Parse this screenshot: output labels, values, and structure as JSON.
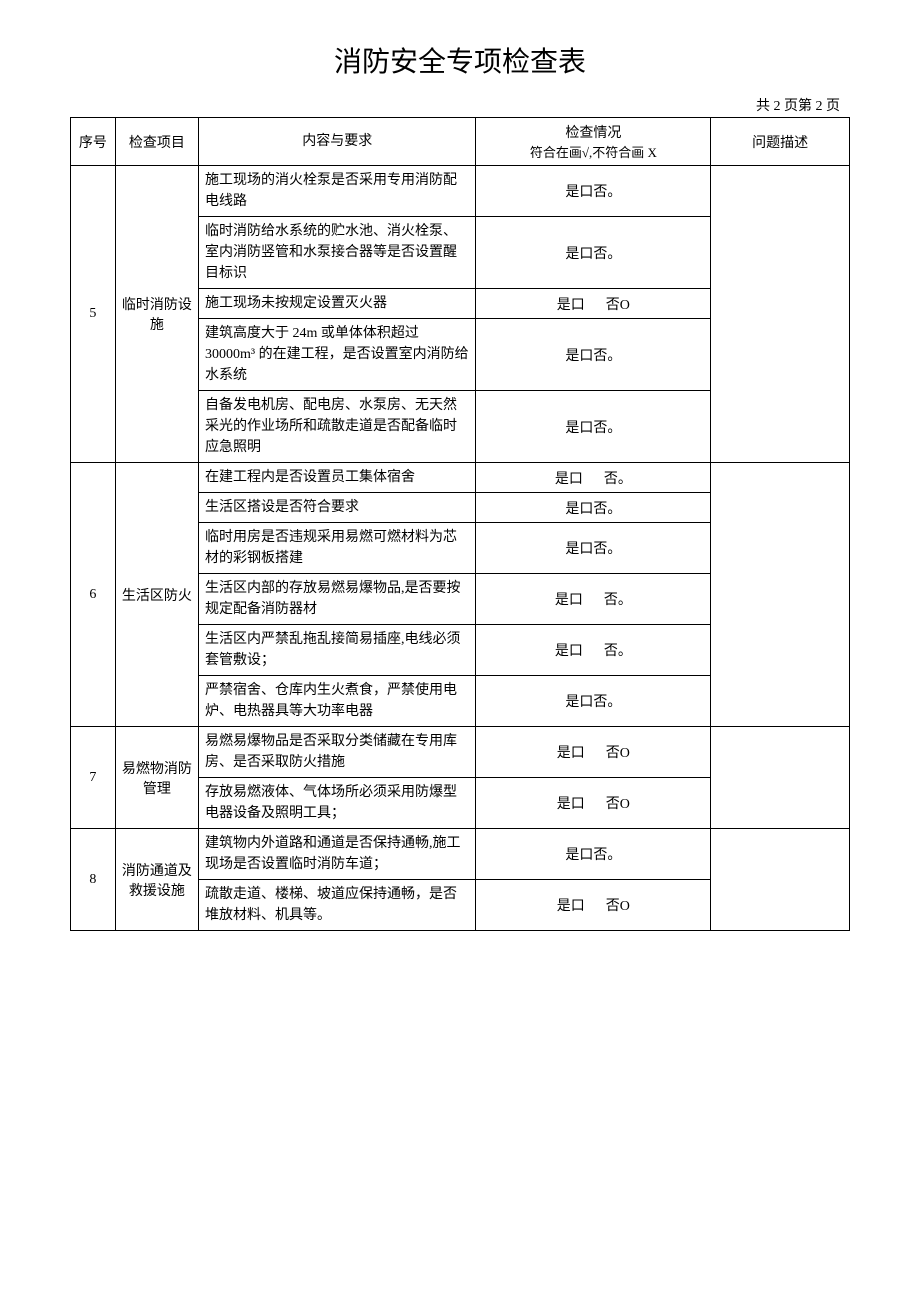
{
  "title": "消防安全专项检查表",
  "pagination": "共 2 页第 2 页",
  "headers": {
    "seq": "序号",
    "category": "检查项目",
    "content": "内容与要求",
    "check_line1": "检查情况",
    "check_line2": "符合在画√,不符合画 X",
    "desc": "问题描述"
  },
  "check_labels": {
    "yes_no_dot": "是口否。",
    "yes_no_spaced": "是口      否。",
    "yes_no_circle": "是口      否O"
  },
  "groups": [
    {
      "seq": "5",
      "category": "临时消防设施",
      "desc": "",
      "rows": [
        {
          "content": "施工现场的消火栓泵是否采用专用消防配电线路",
          "check_type": "yes_no_dot"
        },
        {
          "content": "临时消防给水系统的贮水池、消火栓泵、室内消防竖管和水泵接合器等是否设置醒目标识",
          "check_type": "yes_no_dot"
        },
        {
          "content": "施工现场未按规定设置灭火器",
          "check_type": "yes_no_circle"
        },
        {
          "content": "建筑高度大于 24m 或单体体积超过 30000m³ 的在建工程，是否设置室内消防给水系统",
          "check_type": "yes_no_dot"
        },
        {
          "content": "自备发电机房、配电房、水泵房、无天然采光的作业场所和疏散走道是否配备临时应急照明",
          "check_type": "yes_no_dot"
        }
      ]
    },
    {
      "seq": "6",
      "category": "生活区防火",
      "desc": "",
      "rows": [
        {
          "content": "在建工程内是否设置员工集体宿舍",
          "check_type": "yes_no_spaced"
        },
        {
          "content": "生活区搭设是否符合要求",
          "check_type": "yes_no_dot"
        },
        {
          "content": "临时用房是否违规采用易燃可燃材料为芯材的彩钢板搭建",
          "check_type": "yes_no_dot"
        },
        {
          "content": "生活区内部的存放易燃易爆物品,是否要按规定配备消防器材",
          "check_type": "yes_no_spaced"
        },
        {
          "content": "生活区内严禁乱拖乱接简易插座,电线必须套管敷设；",
          "check_type": "yes_no_spaced"
        },
        {
          "content": "严禁宿舍、仓库内生火煮食，严禁使用电炉、电热器具等大功率电器",
          "check_type": "yes_no_dot"
        }
      ]
    },
    {
      "seq": "7",
      "category": "易燃物消防管理",
      "desc": "",
      "rows": [
        {
          "content": "易燃易爆物品是否采取分类储藏在专用库房、是否采取防火措施",
          "check_type": "yes_no_circle"
        },
        {
          "content": "存放易燃液体、气体场所必须采用防爆型电器设备及照明工具；",
          "check_type": "yes_no_circle"
        }
      ]
    },
    {
      "seq": "8",
      "category": "消防通道及救援设施",
      "desc": "",
      "rows": [
        {
          "content": "建筑物内外道路和通道是否保持通畅,施工现场是否设置临时消防车道；",
          "check_type": "yes_no_dot"
        },
        {
          "content": "疏散走道、楼梯、坡道应保持通畅，是否堆放材料、机具等。",
          "check_type": "yes_no_circle"
        }
      ]
    }
  ],
  "styling": {
    "background_color": "#ffffff",
    "text_color": "#000000",
    "border_color": "#000000",
    "title_fontsize": 28,
    "body_fontsize": 14,
    "font_family": "SimSun"
  }
}
